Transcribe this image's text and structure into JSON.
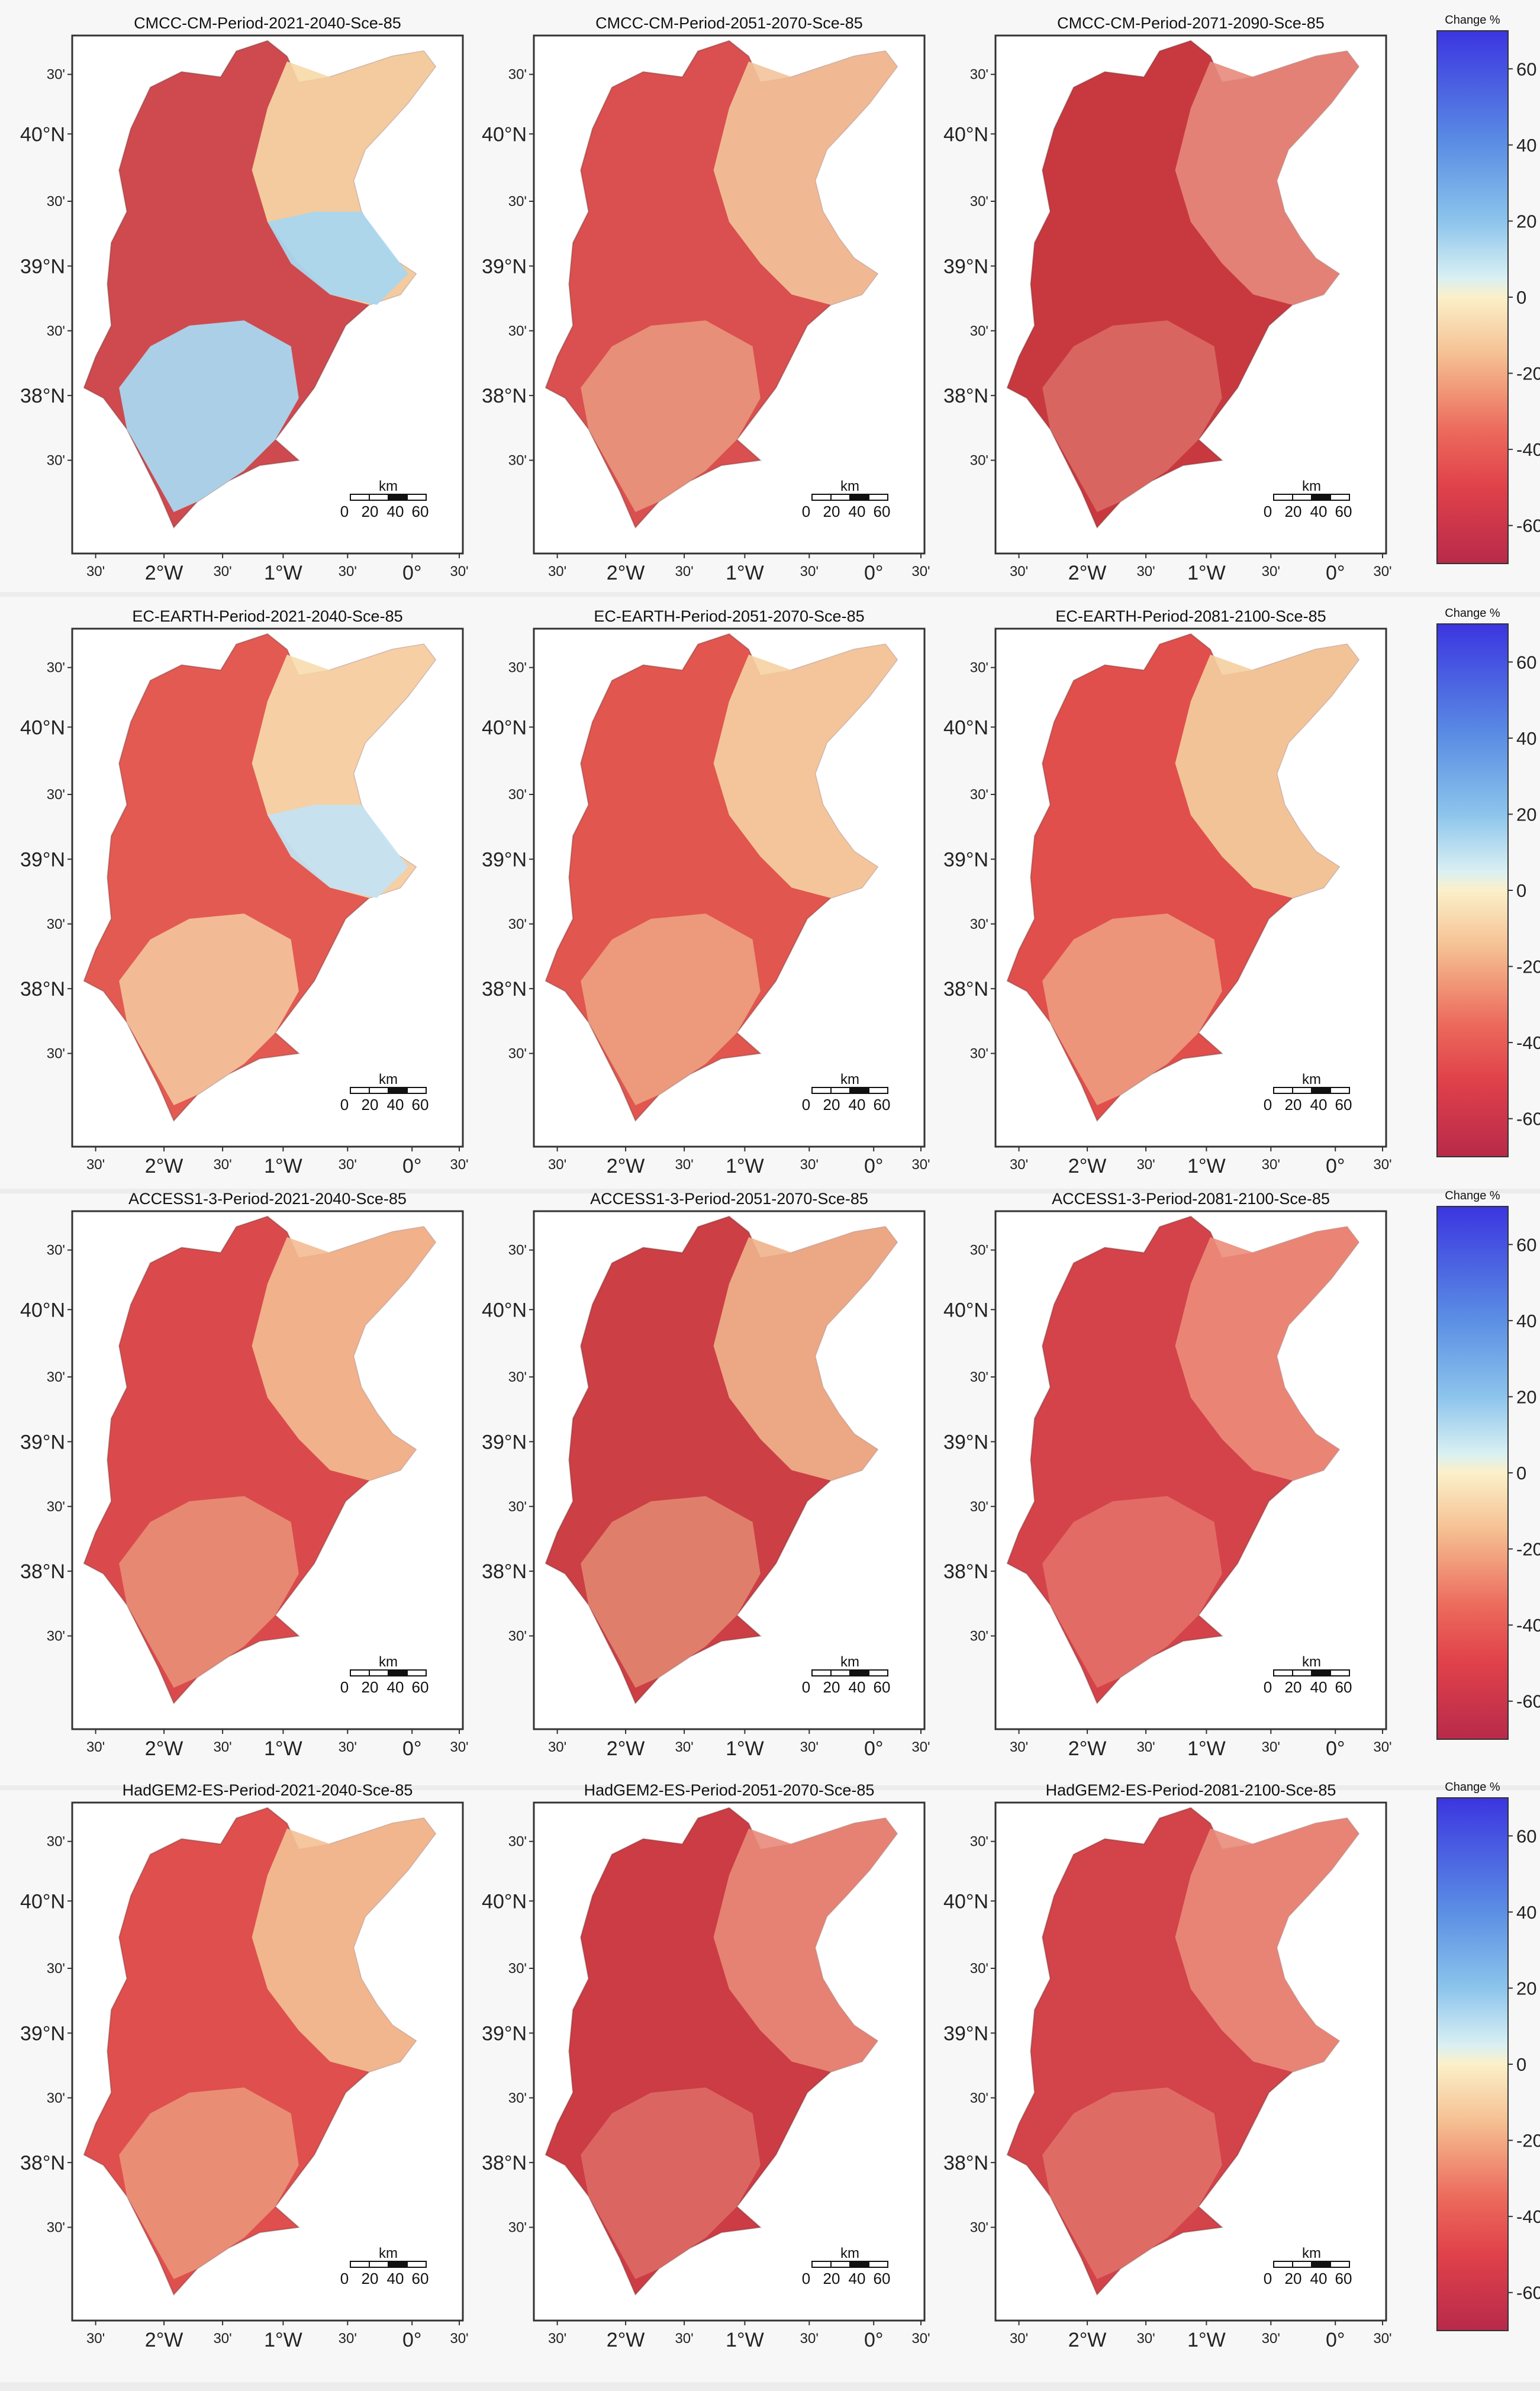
{
  "figure": {
    "rows": [
      {
        "model": "CMCC-CM",
        "panels": [
          {
            "title": "CMCC-CM-Period-2021-2040-Sce-85",
            "fill": "#cf4a4f",
            "light": "#f6d9a6",
            "cool": "#a9d6ee"
          },
          {
            "title": "CMCC-CM-Period-2051-2070-Sce-85",
            "fill": "#da4f4f",
            "light": "#f2c49b",
            "cool": "#f2c49b"
          },
          {
            "title": "CMCC-CM-Period-2071-2090-Sce-85",
            "fill": "#c8393f",
            "light": "#e78a7c",
            "cool": "#e78a7c"
          }
        ]
      },
      {
        "model": "EC-EARTH",
        "panels": [
          {
            "title": "EC-EARTH-Period-2021-2040-Sce-85",
            "fill": "#e35a52",
            "light": "#f7dcae",
            "cool": "#c4e3f1"
          },
          {
            "title": "EC-EARTH-Period-2051-2070-Sce-85",
            "fill": "#e1564f",
            "light": "#f6d1a3",
            "cool": "#f6d1a3"
          },
          {
            "title": "EC-EARTH-Period-2081-2100-Sce-85",
            "fill": "#e04f4c",
            "light": "#f5cfa1",
            "cool": "#f5cfa1"
          }
        ]
      },
      {
        "model": "ACCESS1-3",
        "panels": [
          {
            "title": "ACCESS1-3-Period-2021-2040-Sce-85",
            "fill": "#da4a4c",
            "light": "#f3bc92",
            "cool": "#f3bc92"
          },
          {
            "title": "ACCESS1-3-Period-2051-2070-Sce-85",
            "fill": "#cc3f45",
            "light": "#f0b38c",
            "cool": "#f0b38c"
          },
          {
            "title": "ACCESS1-3-Period-2081-2100-Sce-85",
            "fill": "#d4434a",
            "light": "#ec8d7b",
            "cool": "#ec8d7b"
          }
        ]
      },
      {
        "model": "HadGEM2-ES",
        "panels": [
          {
            "title": "HadGEM2-ES-Period-2021-2040-Sce-85",
            "fill": "#df4f4e",
            "light": "#f3c195",
            "cool": "#f3c195"
          },
          {
            "title": "HadGEM2-ES-Period-2051-2070-Sce-85",
            "fill": "#cc3c44",
            "light": "#e8897a",
            "cool": "#e8897a"
          },
          {
            "title": "HadGEM2-ES-Period-2081-2100-Sce-85",
            "fill": "#d3434a",
            "light": "#e98c7b",
            "cool": "#e98c7b"
          }
        ]
      }
    ],
    "lat_labels": [
      "30'",
      "40°N",
      "30'",
      "39°N",
      "30'",
      "38°N",
      "30'"
    ],
    "lon_labels": [
      "30'",
      "2°W",
      "30'",
      "1°W",
      "30'",
      "0°",
      "30'"
    ],
    "scalebar": {
      "unit": "km",
      "ticks": [
        "0",
        "20",
        "40",
        "60"
      ]
    },
    "colorbar": {
      "title": "Change %",
      "labels": [
        "60",
        "40",
        "20",
        "0",
        "-20",
        "-40",
        "-60"
      ],
      "range": [
        -70,
        70
      ],
      "stops": [
        {
          "v": 70,
          "c": "#3b35e0"
        },
        {
          "v": 40,
          "c": "#5b8fe4"
        },
        {
          "v": 20,
          "c": "#8cc4ec"
        },
        {
          "v": 5,
          "c": "#d9f0f3"
        },
        {
          "v": 0,
          "c": "#fbf0c9"
        },
        {
          "v": -15,
          "c": "#f5c092"
        },
        {
          "v": -35,
          "c": "#ec6a5c"
        },
        {
          "v": -50,
          "c": "#e0414a"
        },
        {
          "v": -70,
          "c": "#b82a4a"
        }
      ]
    }
  }
}
